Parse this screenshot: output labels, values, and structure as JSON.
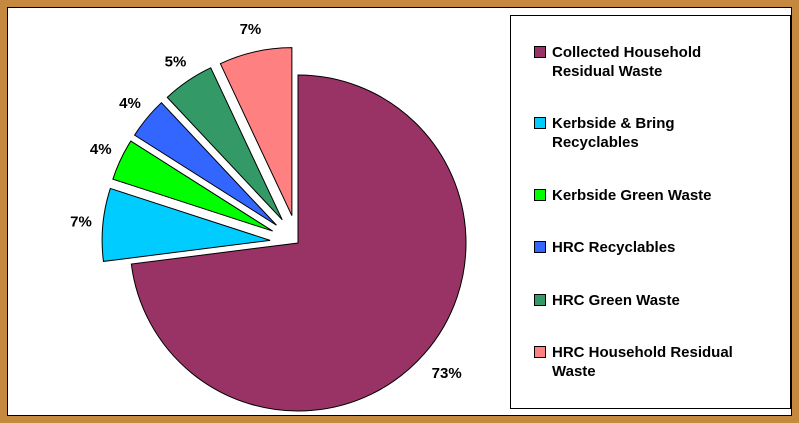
{
  "chart_data": {
    "type": "pie",
    "categories": [
      "Collected Household Residual Waste",
      "Kerbside & Bring Recyclables",
      "Kerbside Green Waste",
      "HRC Recyclables",
      "HRC Green Waste",
      "HRC Household Residual Waste"
    ],
    "values": [
      73,
      7,
      4,
      4,
      5,
      7
    ],
    "value_labels": [
      "73%",
      "7%",
      "4%",
      "4%",
      "5%",
      "7%"
    ],
    "colors": [
      "#993366",
      "#00ccff",
      "#00ff00",
      "#3366ff",
      "#339966",
      "#ff8080"
    ],
    "legend": "right"
  }
}
